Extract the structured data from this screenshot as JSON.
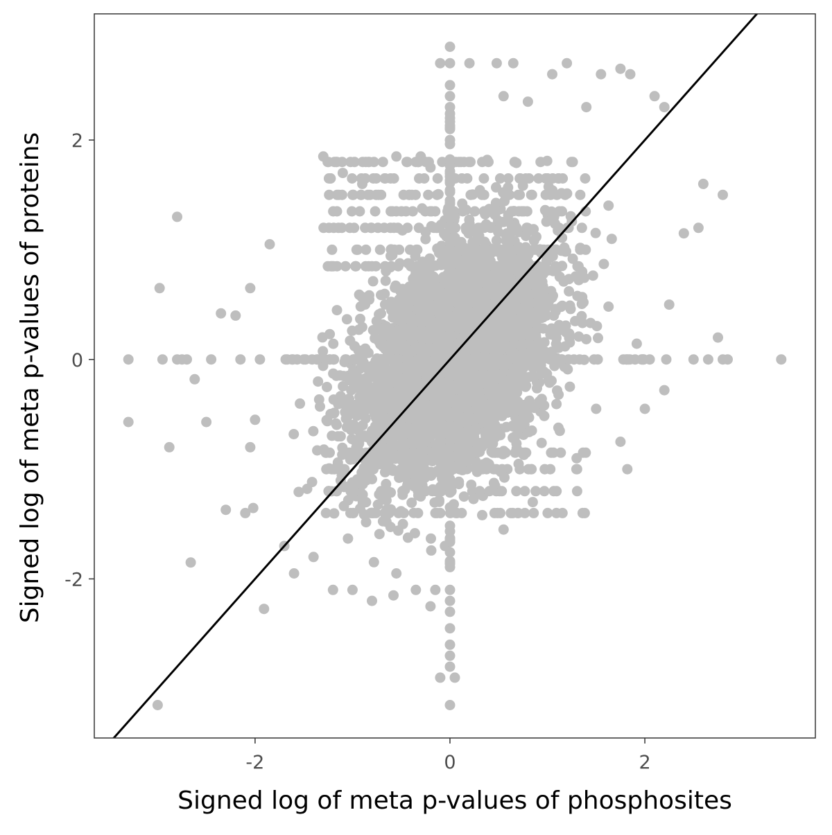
{
  "chart_data": {
    "type": "scatter",
    "title": "",
    "xlabel": "Signed log of meta p-values of phosphosites",
    "ylabel": "Signed log of meta p-values of proteins",
    "xlim": [
      -3.65,
      3.75
    ],
    "ylim": [
      -3.45,
      3.15
    ],
    "x_ticks": [
      -2,
      0,
      2
    ],
    "x_tick_labels": [
      "-2",
      "0",
      "2"
    ],
    "y_ticks": [
      -2,
      0,
      2
    ],
    "y_tick_labels": [
      "-2",
      "0",
      "2"
    ],
    "grid": false,
    "legend": "none",
    "point_color": "#bebebe",
    "line_color": "#000000",
    "reference_line": {
      "type": "identity",
      "slope": 1,
      "intercept": 0
    },
    "series": [
      {
        "points": [
          [
            3.4,
            0.0
          ],
          [
            2.85,
            0.0
          ],
          [
            2.8,
            0.0
          ],
          [
            2.65,
            0.0
          ],
          [
            2.5,
            0.0
          ],
          [
            2.22,
            0.0
          ],
          [
            2.05,
            0.0
          ],
          [
            1.9,
            0.0
          ],
          [
            -3.3,
            0.0
          ],
          [
            -2.95,
            0.0
          ],
          [
            -2.8,
            0.0
          ],
          [
            -2.75,
            0.0
          ],
          [
            -2.7,
            0.0
          ],
          [
            -2.45,
            0.0
          ],
          [
            -2.15,
            0.0
          ],
          [
            -1.95,
            0.0
          ],
          [
            -3.3,
            -0.57
          ],
          [
            -2.98,
            0.65
          ],
          [
            -2.8,
            1.3
          ],
          [
            -2.62,
            -0.18
          ],
          [
            -2.5,
            -0.57
          ],
          [
            -2.35,
            0.42
          ],
          [
            -2.88,
            -0.8
          ],
          [
            -2.66,
            -1.85
          ],
          [
            -3.0,
            -3.15
          ],
          [
            -1.85,
            1.05
          ],
          [
            -2.1,
            -1.4
          ],
          [
            -2.3,
            -1.37
          ],
          [
            0.0,
            2.85
          ],
          [
            0.0,
            2.7
          ],
          [
            -0.1,
            2.7
          ],
          [
            0.2,
            2.7
          ],
          [
            0.48,
            2.7
          ],
          [
            0.65,
            2.7
          ],
          [
            0.0,
            2.5
          ],
          [
            0.0,
            2.4
          ],
          [
            0.0,
            2.3
          ],
          [
            0.0,
            2.2
          ],
          [
            0.0,
            2.1
          ],
          [
            0.0,
            2.0
          ],
          [
            0.0,
            -2.1
          ],
          [
            0.0,
            -2.2
          ],
          [
            0.0,
            -2.3
          ],
          [
            0.0,
            -2.45
          ],
          [
            0.0,
            -2.6
          ],
          [
            0.0,
            -2.7
          ],
          [
            0.0,
            -2.8
          ],
          [
            -0.1,
            -2.9
          ],
          [
            0.05,
            -2.9
          ],
          [
            0.0,
            -3.15
          ],
          [
            -0.15,
            -2.1
          ],
          [
            -0.2,
            -2.25
          ],
          [
            1.85,
            2.6
          ],
          [
            1.75,
            2.65
          ],
          [
            1.55,
            2.6
          ],
          [
            1.2,
            2.7
          ],
          [
            1.05,
            2.6
          ],
          [
            2.1,
            2.4
          ],
          [
            2.2,
            2.3
          ],
          [
            1.4,
            2.3
          ],
          [
            2.6,
            1.6
          ],
          [
            2.8,
            1.5
          ],
          [
            2.55,
            1.2
          ],
          [
            2.4,
            1.15
          ],
          [
            2.25,
            0.5
          ],
          [
            2.75,
            0.2
          ],
          [
            2.2,
            -0.28
          ],
          [
            2.0,
            -0.45
          ],
          [
            1.82,
            -1.0
          ],
          [
            1.75,
            -0.75
          ],
          [
            1.5,
            -0.45
          ],
          [
            1.3,
            -0.9
          ],
          [
            0.85,
            -1.3
          ],
          [
            0.55,
            -1.55
          ],
          [
            -1.0,
            -2.1
          ],
          [
            -1.2,
            -2.1
          ],
          [
            -0.8,
            -2.2
          ],
          [
            -0.58,
            -2.15
          ],
          [
            -0.35,
            -2.1
          ],
          [
            -0.55,
            -1.95
          ],
          [
            -1.3,
            1.85
          ],
          [
            -1.1,
            1.7
          ],
          [
            -0.9,
            1.6
          ],
          [
            -0.55,
            1.85
          ],
          [
            -0.3,
            1.85
          ],
          [
            -0.2,
            1.75
          ],
          [
            0.55,
            2.4
          ],
          [
            0.8,
            2.35
          ],
          [
            -1.6,
            -1.95
          ],
          [
            -1.4,
            -1.8
          ],
          [
            -1.7,
            -1.7
          ],
          [
            -2.05,
            -0.8
          ],
          [
            -2.0,
            -0.55
          ],
          [
            -2.2,
            0.4
          ],
          [
            -2.05,
            0.65
          ]
        ],
        "cloud": {
          "center": [
            0.05,
            0.0
          ],
          "sd_x": 0.5,
          "sd_y": 0.55,
          "correlation": 0.4,
          "count": 3600
        },
        "row_bands": {
          "y_values": [
            1.8,
            1.65,
            1.5,
            1.35,
            1.2,
            1.0,
            0.85,
            -0.85,
            -1.0,
            -1.2,
            -1.4
          ],
          "x_range": [
            -1.3,
            1.4
          ]
        },
        "x_axis_band": {
          "x_range": [
            -1.8,
            2.0
          ],
          "count": 90
        },
        "y_axis_band": {
          "y_range": [
            -1.9,
            2.3
          ],
          "count": 90
        }
      }
    ]
  }
}
